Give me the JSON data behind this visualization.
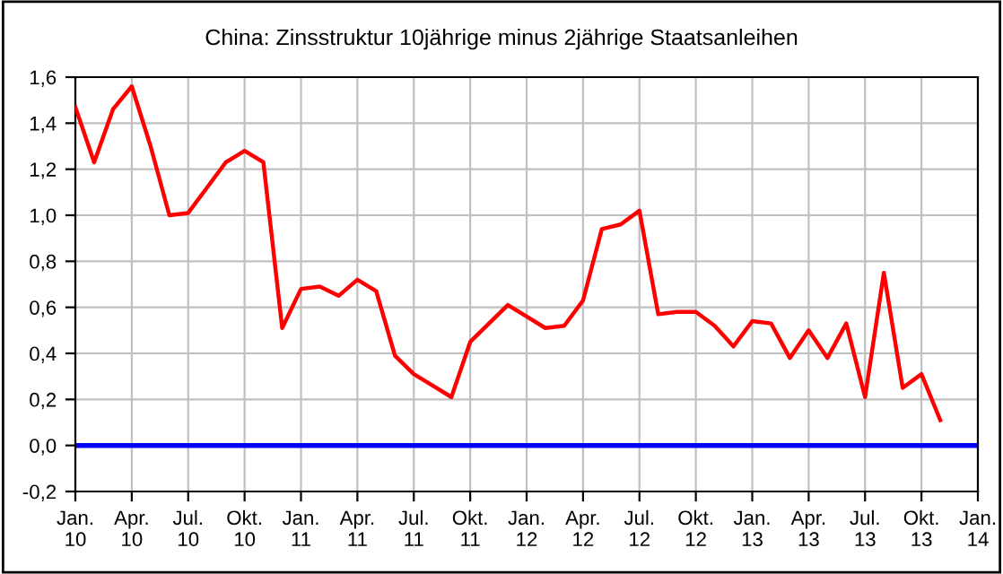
{
  "chart_data": {
    "type": "line",
    "title": "China: Zinsstruktur 10jährige minus 2jährige Staatsanleihen",
    "x": [
      "2010-01",
      "2010-02",
      "2010-03",
      "2010-04",
      "2010-05",
      "2010-06",
      "2010-07",
      "2010-08",
      "2010-09",
      "2010-10",
      "2010-11",
      "2010-12",
      "2011-01",
      "2011-02",
      "2011-03",
      "2011-04",
      "2011-05",
      "2011-06",
      "2011-07",
      "2011-08",
      "2011-09",
      "2011-10",
      "2011-11",
      "2011-12",
      "2012-01",
      "2012-02",
      "2012-03",
      "2012-04",
      "2012-05",
      "2012-06",
      "2012-07",
      "2012-08",
      "2012-09",
      "2012-10",
      "2012-11",
      "2012-12",
      "2013-01",
      "2013-02",
      "2013-03",
      "2013-04",
      "2013-05",
      "2013-06",
      "2013-07",
      "2013-08",
      "2013-09",
      "2013-10",
      "2013-11"
    ],
    "series": [
      {
        "color": "#ff0000",
        "values": [
          1.47,
          1.23,
          1.46,
          1.56,
          1.3,
          1.0,
          1.01,
          1.12,
          1.23,
          1.28,
          1.23,
          0.51,
          0.68,
          0.69,
          0.65,
          0.72,
          0.67,
          0.39,
          0.31,
          0.26,
          0.21,
          0.45,
          0.53,
          0.61,
          0.56,
          0.51,
          0.52,
          0.63,
          0.94,
          0.96,
          1.02,
          0.57,
          0.58,
          0.58,
          0.52,
          0.43,
          0.54,
          0.53,
          0.38,
          0.5,
          0.38,
          0.53,
          0.21,
          0.75,
          0.25,
          0.31,
          0.11
        ]
      }
    ],
    "xlim": [
      "2010-01",
      "2014-01"
    ],
    "xticks": [
      {
        "value": "2010-01",
        "label": "Jan.\n10"
      },
      {
        "value": "2010-04",
        "label": "Apr.\n10"
      },
      {
        "value": "2010-07",
        "label": "Jul.\n10"
      },
      {
        "value": "2010-10",
        "label": "Okt.\n10"
      },
      {
        "value": "2011-01",
        "label": "Jan.\n11"
      },
      {
        "value": "2011-04",
        "label": "Apr.\n11"
      },
      {
        "value": "2011-07",
        "label": "Jul.\n11"
      },
      {
        "value": "2011-10",
        "label": "Okt.\n11"
      },
      {
        "value": "2012-01",
        "label": "Jan.\n12"
      },
      {
        "value": "2012-04",
        "label": "Apr.\n12"
      },
      {
        "value": "2012-07",
        "label": "Jul.\n12"
      },
      {
        "value": "2012-10",
        "label": "Okt.\n12"
      },
      {
        "value": "2013-01",
        "label": "Jan.\n13"
      },
      {
        "value": "2013-04",
        "label": "Apr.\n13"
      },
      {
        "value": "2013-07",
        "label": "Jul.\n13"
      },
      {
        "value": "2013-10",
        "label": "Okt.\n13"
      },
      {
        "value": "2014-01",
        "label": "Jan.\n14"
      }
    ],
    "ylim": [
      -0.2,
      1.6
    ],
    "yticks": [
      {
        "value": -0.2,
        "label": "-0,2"
      },
      {
        "value": 0,
        "label": "0,0"
      },
      {
        "value": 0.2,
        "label": "0,2"
      },
      {
        "value": 0.4,
        "label": "0,4"
      },
      {
        "value": 0.6,
        "label": "0,6"
      },
      {
        "value": 0.8,
        "label": "0,8"
      },
      {
        "value": 1.0,
        "label": "1,0"
      },
      {
        "value": 1.2,
        "label": "1,2"
      },
      {
        "value": 1.4,
        "label": "1,4"
      },
      {
        "value": 1.6,
        "label": "1,6"
      }
    ],
    "ref_lines": [
      {
        "axis": "y",
        "value": 0,
        "color": "#0000ff"
      }
    ],
    "grid": true,
    "legend": false,
    "marker": "none",
    "line_style": "solid"
  }
}
